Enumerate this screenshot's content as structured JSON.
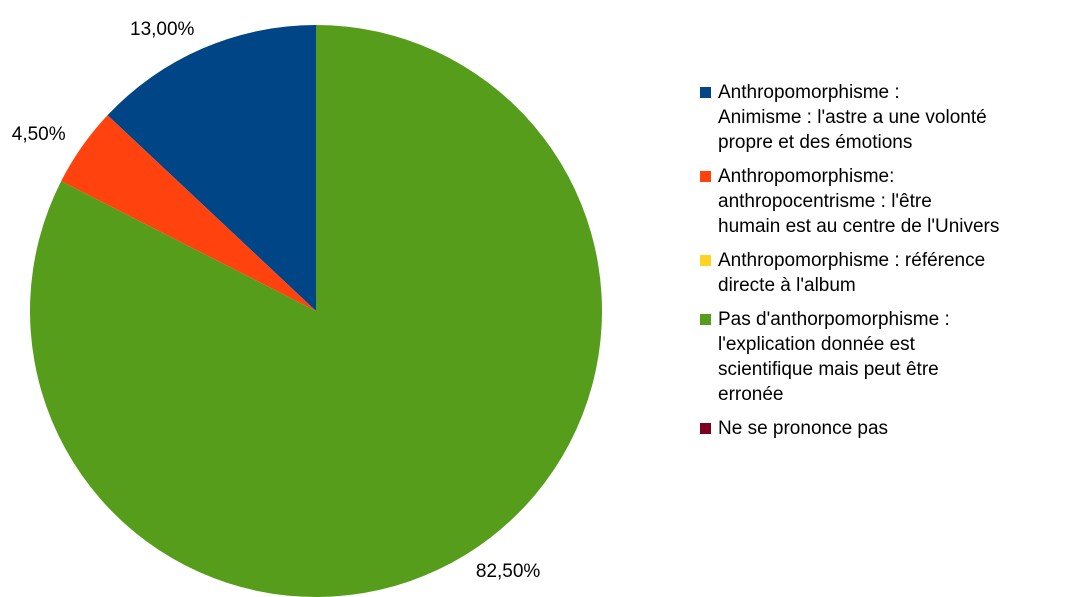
{
  "chart_data": {
    "type": "pie",
    "categories": [
      "Anthropomorphisme  :\nAnimisme  : l'astre a une volonté\npropre et des émotions",
      "Anthropomorphisme:\nanthropocentrisme  : l'être\nhumain est au centre de l'Univers",
      "Anthropomorphisme  : référence\ndirecte à l'album",
      "Pas d'anthorpomorphisme  :\nl'explication donnée est\nscientifique mais peut être\nerronée",
      "Ne se prononce pas"
    ],
    "values": [
      13,
      4.5,
      0,
      82.5,
      0
    ],
    "value_labels": [
      "13,00%",
      "4,50%",
      null,
      "82,50%",
      null
    ],
    "colors": [
      "#004586",
      "#ff420e",
      "#ffd320",
      "#579d1c",
      "#7e0021"
    ],
    "legend": "right"
  }
}
